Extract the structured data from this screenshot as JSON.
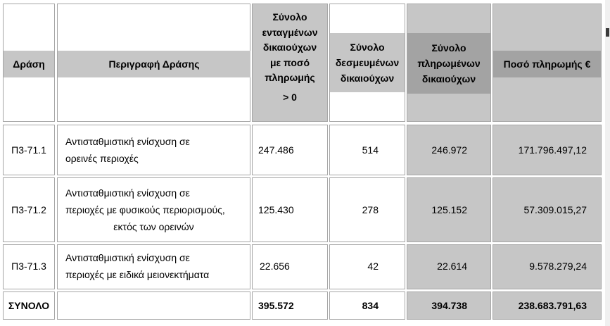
{
  "table": {
    "headers": {
      "action": "Δράση",
      "description": "Περιγραφή Δράσης",
      "integrated_lines": [
        "Σύνολο",
        "ενταγμένων",
        "δικαιούχων",
        "με ποσό",
        "πληρωμής"
      ],
      "integrated_suffix": "> 0",
      "committed_lines": [
        "Σύνολο",
        "δεσμευμένων",
        "δικαιούχων"
      ],
      "paid_lines": [
        "Σύνολο",
        "πληρωμένων",
        "δικαιούχων"
      ],
      "amount": "Ποσό πληρωμής €"
    },
    "rows": [
      {
        "code": "Π3-71.1",
        "description_lines": [
          "Αντισταθμιστική ενίσχυση σε",
          "ορεινές περιοχές"
        ],
        "integrated": "247.486",
        "committed": "514",
        "paid": "246.972",
        "amount": "171.796.497,12"
      },
      {
        "code": "Π3-71.2",
        "description_lines": [
          "Αντισταθμιστική ενίσχυση σε",
          "περιοχές με φυσικούς περιορισμούς,",
          "εκτός των ορεινών"
        ],
        "integrated": "125.430",
        "committed": "278",
        "paid": "125.152",
        "amount": "57.309.015,27"
      },
      {
        "code": "Π3-71.3",
        "description_lines": [
          "Αντισταθμιστική ενίσχυση σε",
          "περιοχές με ειδικά μειονεκτήματα"
        ],
        "integrated": "22.656",
        "committed": "42",
        "paid": "22.614",
        "amount": "9.578.279,24"
      }
    ],
    "total": {
      "label": "ΣΥΝΟΛΟ",
      "description": "",
      "integrated": "395.572",
      "committed": "834",
      "paid": "394.738",
      "amount": "238.683.791,63"
    }
  },
  "colors": {
    "shade_light": "#c6c6c6",
    "shade_dark": "#a3a3a3",
    "border": "#a6a6a6"
  }
}
